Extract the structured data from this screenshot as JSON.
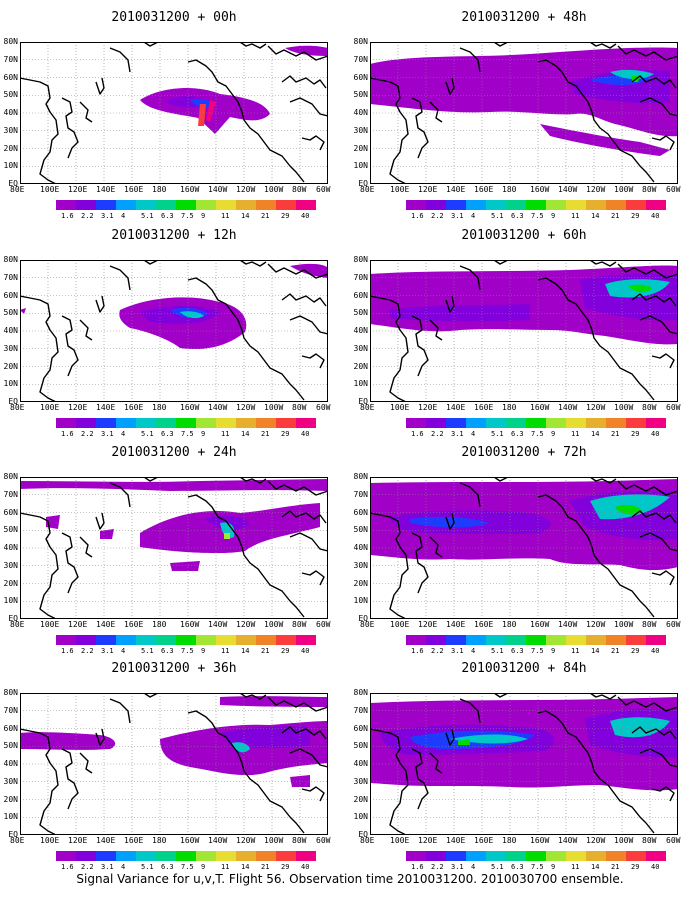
{
  "caption": "Signal Variance for u,v,T. Flight 56. Observation time 2010031200. 2010030700 ensemble.",
  "lat_labels": [
    "80N",
    "70N",
    "60N",
    "50N",
    "40N",
    "30N",
    "20N",
    "10N",
    "EQ"
  ],
  "lon_labels": [
    "80E",
    "100E",
    "120E",
    "140E",
    "160E",
    "180",
    "160W",
    "140W",
    "120W",
    "100W",
    "80W",
    "60W"
  ],
  "colorbar": {
    "levels": [
      "1.6",
      "2.2",
      "3.1",
      "4",
      "5.1",
      "6.3",
      "7.5",
      "9",
      "11",
      "14",
      "21",
      "29",
      "40"
    ],
    "colors": [
      "#a000c8",
      "#8200dc",
      "#1e3cff",
      "#00a0ff",
      "#00c8c8",
      "#00d28c",
      "#00dc00",
      "#a0e632",
      "#e6dc32",
      "#e6af2d",
      "#f08228",
      "#fa3c3c",
      "#f00082"
    ]
  },
  "panels": [
    {
      "title": "2010031200 + 00h"
    },
    {
      "title": "2010031200 + 48h"
    },
    {
      "title": "2010031200 + 12h"
    },
    {
      "title": "2010031200 + 60h"
    },
    {
      "title": "2010031200 + 24h"
    },
    {
      "title": "2010031200 + 72h"
    },
    {
      "title": "2010031200 + 36h"
    },
    {
      "title": "2010031200 + 84h"
    }
  ]
}
